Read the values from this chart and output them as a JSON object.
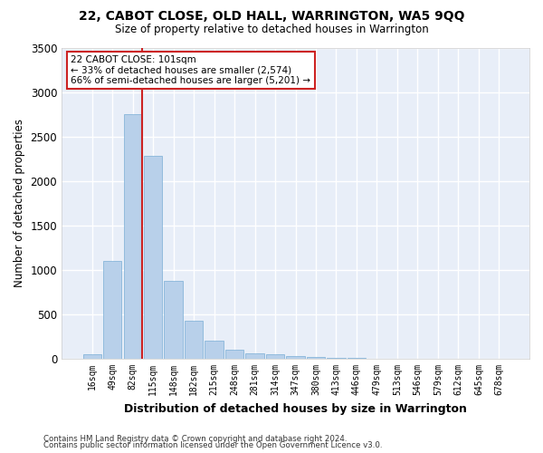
{
  "title1": "22, CABOT CLOSE, OLD HALL, WARRINGTON, WA5 9QQ",
  "title2": "Size of property relative to detached houses in Warrington",
  "xlabel": "Distribution of detached houses by size in Warrington",
  "ylabel": "Number of detached properties",
  "bar_color": "#b8d0ea",
  "bar_edge_color": "#7aaed6",
  "background_color": "#e8eef8",
  "grid_color": "#ffffff",
  "categories": [
    "16sqm",
    "49sqm",
    "82sqm",
    "115sqm",
    "148sqm",
    "182sqm",
    "215sqm",
    "248sqm",
    "281sqm",
    "314sqm",
    "347sqm",
    "380sqm",
    "413sqm",
    "446sqm",
    "479sqm",
    "513sqm",
    "546sqm",
    "579sqm",
    "612sqm",
    "645sqm",
    "678sqm"
  ],
  "values": [
    50,
    1100,
    2750,
    2280,
    880,
    430,
    200,
    100,
    60,
    50,
    30,
    20,
    10,
    8,
    5,
    3,
    2,
    2,
    1,
    1,
    0
  ],
  "ylim": [
    0,
    3500
  ],
  "yticks": [
    0,
    500,
    1000,
    1500,
    2000,
    2500,
    3000,
    3500
  ],
  "vline_x_idx": 2,
  "vline_color": "#cc2222",
  "annotation_text": "22 CABOT CLOSE: 101sqm\n← 33% of detached houses are smaller (2,574)\n66% of semi-detached houses are larger (5,201) →",
  "annotation_box_color": "#ffffff",
  "annotation_box_edge": "#cc2222",
  "footer1": "Contains HM Land Registry data © Crown copyright and database right 2024.",
  "footer2": "Contains public sector information licensed under the Open Government Licence v3.0."
}
